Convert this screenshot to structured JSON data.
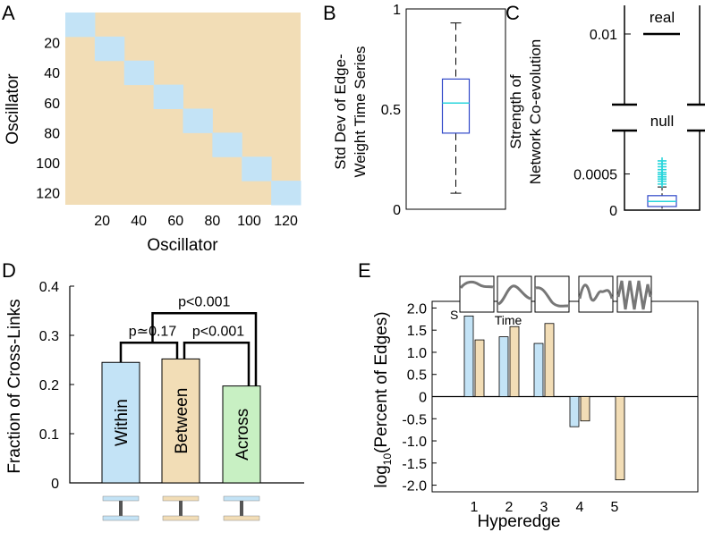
{
  "colors": {
    "within": "#c3e3f6",
    "between": "#f2ddb6",
    "across": "#c8f0c3",
    "box_blue": "#3048c8",
    "median_cyan": "#2ad6dc",
    "thumb_line": "#777777"
  },
  "chart_data": [
    {
      "panel": "A",
      "type": "heatmap",
      "xlabel": "Oscillator",
      "ylabel": "Oscillator",
      "xticks": [
        "20",
        "40",
        "60",
        "80",
        "100",
        "120"
      ],
      "yticks": [
        "20",
        "40",
        "60",
        "80",
        "100",
        "120"
      ],
      "range": [
        0,
        128
      ],
      "block_size": 16,
      "n_blocks": 8,
      "diag_color": "#c3e3f6",
      "off_color": "#f2ddb6"
    },
    {
      "panel": "B",
      "type": "box",
      "ylabel_lines": [
        "Std Dev of Edge-",
        "Weight Time Series"
      ],
      "ylim": [
        0,
        1
      ],
      "yticks": [
        "0",
        "0.5",
        "1"
      ],
      "whisker_low": 0.08,
      "q1": 0.38,
      "median": 0.53,
      "q3": 0.65,
      "whisker_high": 0.93
    },
    {
      "panel": "C",
      "type": "box",
      "ylabel_lines": [
        "Strength of",
        "Network Co-evolution"
      ],
      "real": {
        "label": "real",
        "tick_label": "0.01",
        "value": 0.01
      },
      "null": {
        "label": "null",
        "ylim": [
          0,
          0.0011
        ],
        "yticks": [
          "0",
          "0.0005"
        ],
        "whisker_low": 2e-05,
        "q1": 5e-05,
        "median": 0.00012,
        "q3": 0.0002,
        "whisker_high": 0.00032,
        "outliers": [
          0.00036,
          0.0004,
          0.00043,
          0.00046,
          0.00049,
          0.00052,
          0.00056,
          0.0006,
          0.00064,
          0.00068
        ]
      }
    },
    {
      "panel": "D",
      "type": "bar",
      "ylabel": "Fraction of Cross-Links",
      "ylim": [
        0,
        0.4
      ],
      "yticks": [
        "0",
        "0.1",
        "0.2",
        "0.3",
        "0.4"
      ],
      "categories": [
        "Within",
        "Between",
        "Across"
      ],
      "values": [
        0.245,
        0.252,
        0.197
      ],
      "brackets": [
        {
          "from": 0,
          "to": 1,
          "label": "p≃0.17"
        },
        {
          "from": 1,
          "to": 2,
          "label": "p<0.001"
        },
        {
          "from": 0,
          "to": 2,
          "label": "p<0.001"
        }
      ]
    },
    {
      "panel": "E",
      "type": "bar",
      "xlabel": "Hyperedge",
      "ylabel_main": "log",
      "ylabel_sub": "10",
      "ylabel_rest": "(Percent of Edges)",
      "ylim": [
        -2.15,
        2.15
      ],
      "yticks": [
        "-2.0",
        "-1.5",
        "-1.0",
        "-0.5",
        "0",
        "0.5",
        "1.0",
        "1.5",
        "2.0"
      ],
      "categories": [
        "1",
        "2",
        "3",
        "4",
        "5"
      ],
      "series": [
        {
          "name": "blue",
          "values": [
            1.82,
            1.35,
            1.2,
            -0.68,
            0
          ]
        },
        {
          "name": "tan",
          "values": [
            1.28,
            1.58,
            1.65,
            -0.55,
            -1.88
          ]
        }
      ],
      "inset_y_label": "S",
      "inset_x_label": "Time"
    }
  ],
  "panels": {
    "a": "A",
    "b": "B",
    "c": "C",
    "d": "D",
    "e": "E"
  }
}
